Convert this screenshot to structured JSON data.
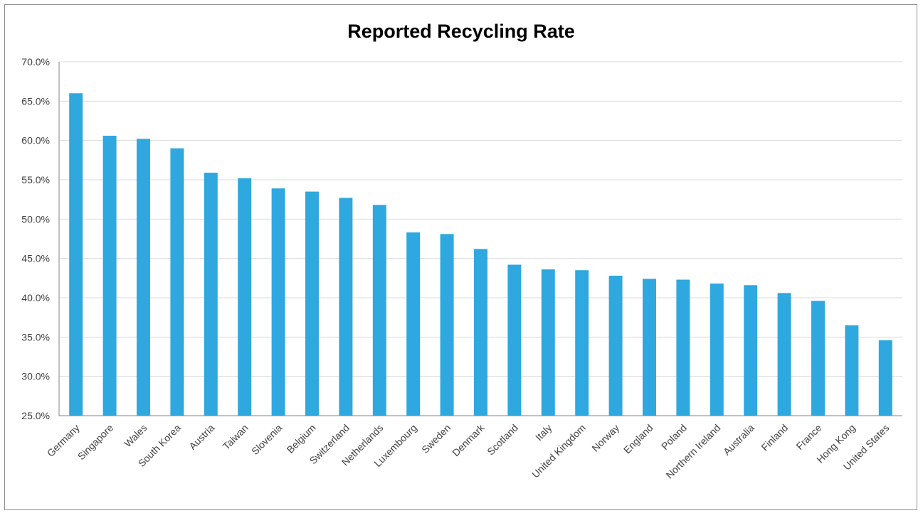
{
  "chart_data": {
    "type": "bar",
    "title": "Reported Recycling Rate",
    "xlabel": "",
    "ylabel": "",
    "ylim": [
      0.25,
      0.7
    ],
    "y_tick_values": [
      0.25,
      0.3,
      0.35,
      0.4,
      0.45,
      0.5,
      0.55,
      0.6,
      0.65,
      0.7
    ],
    "y_tick_labels": [
      "25.0%",
      "30.0%",
      "35.0%",
      "40.0%",
      "45.0%",
      "50.0%",
      "55.0%",
      "60.0%",
      "65.0%",
      "70.0%"
    ],
    "grid": true,
    "legend": "none",
    "bar_color": "#2ea8de",
    "categories": [
      "Germany",
      "Singapore",
      "Wales",
      "South Korea",
      "Austria",
      "Taiwan",
      "Slovenia",
      "Belgium",
      "Switzerland",
      "Netherlands",
      "Luxembourg",
      "Sweden",
      "Denmark",
      "Scotland",
      "Italy",
      "United Kingdom",
      "Norway",
      "England",
      "Poland",
      "Northern Ireland",
      "Australia",
      "Finland",
      "France",
      "Hong Kong",
      "United States"
    ],
    "values": [
      0.66,
      0.606,
      0.602,
      0.59,
      0.559,
      0.552,
      0.539,
      0.535,
      0.527,
      0.518,
      0.483,
      0.481,
      0.462,
      0.442,
      0.436,
      0.435,
      0.428,
      0.424,
      0.423,
      0.418,
      0.416,
      0.406,
      0.396,
      0.365,
      0.346
    ]
  }
}
